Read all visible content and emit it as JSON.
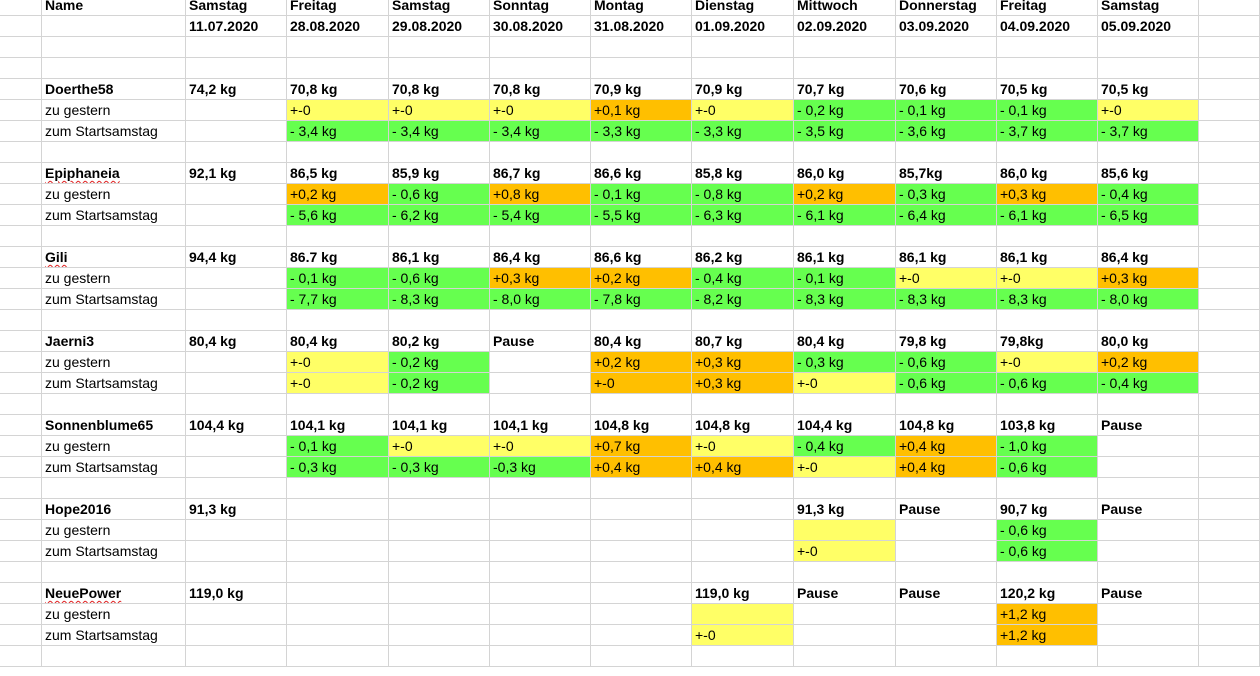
{
  "sheet": {
    "header": {
      "name_label": "Name",
      "days": [
        "Samstag",
        "Freitag",
        "Samstag",
        "Sonntag",
        "Montag",
        "Dienstag",
        "Mittwoch",
        "Donnerstag",
        "Freitag",
        "Samstag"
      ],
      "dates": [
        "11.07.2020",
        "28.08.2020",
        "29.08.2020",
        "30.08.2020",
        "31.08.2020",
        "01.09.2020",
        "02.09.2020",
        "03.09.2020",
        "04.09.2020",
        "05.09.2020"
      ]
    },
    "colors": {
      "green": "#66ff4f",
      "yellow": "#ffff66",
      "orange": "#ffbf00",
      "gridline": "#d4d4d4"
    },
    "persons": [
      {
        "name": "Doerthe58",
        "spellcheck_underline": false,
        "weights": [
          "74,2 kg",
          "70,8 kg",
          "70,8 kg",
          "70,8 kg",
          "70,9 kg",
          "70,9 kg",
          "70,7 kg",
          "70,6 kg",
          "70,5 kg",
          "70,5 kg"
        ],
        "rows": [
          {
            "label": "zu gestern",
            "cells": [
              null,
              {
                "v": "+-0",
                "c": "y"
              },
              {
                "v": "+-0",
                "c": "y"
              },
              {
                "v": "+-0",
                "c": "y"
              },
              {
                "v": "+0,1 kg",
                "c": "o"
              },
              {
                "v": "+-0",
                "c": "y"
              },
              {
                "v": "- 0,2 kg",
                "c": "g"
              },
              {
                "v": "- 0,1 kg",
                "c": "g"
              },
              {
                "v": "- 0,1 kg",
                "c": "g"
              },
              {
                "v": "+-0",
                "c": "y"
              }
            ]
          },
          {
            "label": "zum Startsamstag",
            "cells": [
              null,
              {
                "v": "- 3,4 kg",
                "c": "g"
              },
              {
                "v": "- 3,4 kg",
                "c": "g"
              },
              {
                "v": "- 3,4 kg",
                "c": "g"
              },
              {
                "v": "- 3,3 kg",
                "c": "g"
              },
              {
                "v": "- 3,3 kg",
                "c": "g"
              },
              {
                "v": "- 3,5 kg",
                "c": "g"
              },
              {
                "v": "- 3,6 kg",
                "c": "g"
              },
              {
                "v": "- 3,7 kg",
                "c": "g"
              },
              {
                "v": "- 3,7 kg",
                "c": "g"
              }
            ]
          }
        ]
      },
      {
        "name": "Epiphaneia",
        "spellcheck_underline": true,
        "weights": [
          "92,1 kg",
          "86,5 kg",
          "85,9 kg",
          "86,7 kg",
          "86,6 kg",
          "85,8 kg",
          "86,0 kg",
          "85,7kg",
          "86,0 kg",
          "85,6 kg"
        ],
        "rows": [
          {
            "label": "zu gestern",
            "cells": [
              null,
              {
                "v": "+0,2 kg",
                "c": "o"
              },
              {
                "v": "- 0,6 kg",
                "c": "g"
              },
              {
                "v": "+0,8 kg",
                "c": "o"
              },
              {
                "v": "- 0,1 kg",
                "c": "g"
              },
              {
                "v": "- 0,8 kg",
                "c": "g"
              },
              {
                "v": "+0,2 kg",
                "c": "o"
              },
              {
                "v": "- 0,3 kg",
                "c": "g"
              },
              {
                "v": "+0,3 kg",
                "c": "o"
              },
              {
                "v": "- 0,4 kg",
                "c": "g"
              }
            ]
          },
          {
            "label": "zum Startsamstag",
            "cells": [
              null,
              {
                "v": "- 5,6 kg",
                "c": "g"
              },
              {
                "v": "- 6,2 kg",
                "c": "g"
              },
              {
                "v": "- 5,4 kg",
                "c": "g"
              },
              {
                "v": "- 5,5 kg",
                "c": "g"
              },
              {
                "v": "- 6,3 kg",
                "c": "g"
              },
              {
                "v": "- 6,1 kg",
                "c": "g"
              },
              {
                "v": "- 6,4 kg",
                "c": "g"
              },
              {
                "v": "- 6,1 kg",
                "c": "g"
              },
              {
                "v": "- 6,5 kg",
                "c": "g"
              }
            ]
          }
        ]
      },
      {
        "name": "Gili",
        "spellcheck_underline": true,
        "weights": [
          "94,4 kg",
          "86.7 kg",
          "86,1 kg",
          "86,4 kg",
          "86,6 kg",
          "86,2 kg",
          "86,1 kg",
          "86,1 kg",
          "86,1 kg",
          "86,4 kg"
        ],
        "rows": [
          {
            "label": "zu gestern",
            "cells": [
              null,
              {
                "v": "- 0,1 kg",
                "c": "g"
              },
              {
                "v": "- 0,6 kg",
                "c": "g"
              },
              {
                "v": "+0,3 kg",
                "c": "o"
              },
              {
                "v": "+0,2 kg",
                "c": "o"
              },
              {
                "v": "- 0,4 kg",
                "c": "g"
              },
              {
                "v": "- 0,1 kg",
                "c": "g"
              },
              {
                "v": "+-0",
                "c": "y"
              },
              {
                "v": "+-0",
                "c": "y"
              },
              {
                "v": "+0,3 kg",
                "c": "o"
              }
            ]
          },
          {
            "label": "zum Startsamstag",
            "cells": [
              null,
              {
                "v": "- 7,7 kg",
                "c": "g"
              },
              {
                "v": "- 8,3 kg",
                "c": "g"
              },
              {
                "v": "- 8,0 kg",
                "c": "g"
              },
              {
                "v": "- 7,8 kg",
                "c": "g"
              },
              {
                "v": "- 8,2 kg",
                "c": "g"
              },
              {
                "v": "- 8,3 kg",
                "c": "g"
              },
              {
                "v": "- 8,3 kg",
                "c": "g"
              },
              {
                "v": "- 8,3 kg",
                "c": "g"
              },
              {
                "v": "- 8,0 kg",
                "c": "g"
              }
            ]
          }
        ]
      },
      {
        "name": "Jaerni3",
        "spellcheck_underline": false,
        "weights": [
          "80,4 kg",
          "80,4 kg",
          "80,2 kg",
          "Pause",
          "80,4 kg",
          "80,7 kg",
          "80,4 kg",
          "79,8 kg",
          "79,8kg",
          "80,0 kg"
        ],
        "rows": [
          {
            "label": "zu gestern",
            "cells": [
              null,
              {
                "v": "+-0",
                "c": "y"
              },
              {
                "v": "- 0,2 kg",
                "c": "g"
              },
              null,
              {
                "v": "+0,2 kg",
                "c": "o"
              },
              {
                "v": "+0,3 kg",
                "c": "o"
              },
              {
                "v": "- 0,3 kg",
                "c": "g"
              },
              {
                "v": "- 0,6 kg",
                "c": "g"
              },
              {
                "v": "+-0",
                "c": "y"
              },
              {
                "v": "+0,2 kg",
                "c": "o"
              }
            ]
          },
          {
            "label": "zum Startsamstag",
            "cells": [
              null,
              {
                "v": "+-0",
                "c": "y"
              },
              {
                "v": "- 0,2 kg",
                "c": "g"
              },
              null,
              {
                "v": "+-0",
                "c": "o"
              },
              {
                "v": "+0,3 kg",
                "c": "o"
              },
              {
                "v": "+-0",
                "c": "y"
              },
              {
                "v": "- 0,6 kg",
                "c": "g"
              },
              {
                "v": "- 0,6 kg",
                "c": "g"
              },
              {
                "v": "- 0,4 kg",
                "c": "g"
              }
            ]
          }
        ]
      },
      {
        "name": "Sonnenblume65",
        "spellcheck_underline": false,
        "weights": [
          "104,4 kg",
          "104,1 kg",
          "104,1 kg",
          "104,1 kg",
          "104,8 kg",
          "104,8 kg",
          "104,4 kg",
          "104,8 kg",
          "103,8 kg",
          "Pause"
        ],
        "rows": [
          {
            "label": "zu gestern",
            "cells": [
              null,
              {
                "v": "- 0,1 kg",
                "c": "g"
              },
              {
                "v": "+-0",
                "c": "y"
              },
              {
                "v": "+-0",
                "c": "y"
              },
              {
                "v": "+0,7 kg",
                "c": "o"
              },
              {
                "v": "+-0",
                "c": "y"
              },
              {
                "v": "- 0,4 kg",
                "c": "g"
              },
              {
                "v": "+0,4 kg",
                "c": "o"
              },
              {
                "v": "- 1,0 kg",
                "c": "g"
              },
              null
            ]
          },
          {
            "label": "zum Startsamstag",
            "cells": [
              null,
              {
                "v": "- 0,3 kg",
                "c": "g"
              },
              {
                "v": "- 0,3 kg",
                "c": "g"
              },
              {
                "v": "-0,3 kg",
                "c": "g"
              },
              {
                "v": "+0,4 kg",
                "c": "o"
              },
              {
                "v": "+0,4 kg",
                "c": "o"
              },
              {
                "v": "+-0",
                "c": "y"
              },
              {
                "v": "+0,4 kg",
                "c": "o"
              },
              {
                "v": "- 0,6 kg",
                "c": "g"
              },
              null
            ]
          }
        ]
      },
      {
        "name": "Hope2016",
        "spellcheck_underline": false,
        "weights": [
          "91,3 kg",
          "",
          "",
          "",
          "",
          "",
          "91,3 kg",
          "Pause",
          "90,7 kg",
          "Pause"
        ],
        "rows": [
          {
            "label": "zu gestern",
            "cells": [
              null,
              null,
              null,
              null,
              null,
              null,
              {
                "v": "",
                "c": "y"
              },
              null,
              {
                "v": "- 0,6 kg",
                "c": "g"
              },
              null
            ]
          },
          {
            "label": "zum Startsamstag",
            "cells": [
              null,
              null,
              null,
              null,
              null,
              null,
              {
                "v": "+-0",
                "c": "y"
              },
              null,
              {
                "v": "- 0,6 kg",
                "c": "g"
              },
              null
            ]
          }
        ]
      },
      {
        "name": "NeuePower",
        "spellcheck_underline": true,
        "weights": [
          "119,0 kg",
          "",
          "",
          "",
          "",
          "119,0 kg",
          "Pause",
          "Pause",
          "120,2 kg",
          "Pause"
        ],
        "rows": [
          {
            "label": "zu gestern",
            "cells": [
              null,
              null,
              null,
              null,
              null,
              {
                "v": "",
                "c": "y"
              },
              null,
              null,
              {
                "v": "+1,2 kg",
                "c": "o"
              },
              null
            ]
          },
          {
            "label": "zum Startsamstag",
            "cells": [
              null,
              null,
              null,
              null,
              null,
              {
                "v": "+-0",
                "c": "y"
              },
              null,
              null,
              {
                "v": "+1,2 kg",
                "c": "o"
              },
              null
            ]
          }
        ]
      }
    ]
  }
}
